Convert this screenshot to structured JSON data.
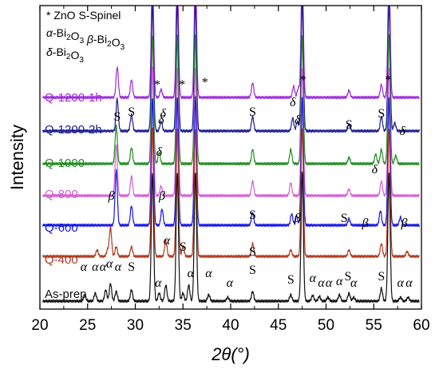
{
  "chart_data": {
    "type": "line",
    "xlabel": "2θ(°)",
    "ylabel": "Intensity",
    "xlim": [
      20,
      60
    ],
    "xticks": [
      "20",
      "25",
      "30",
      "35",
      "40",
      "45",
      "50",
      "55",
      "60"
    ],
    "grid": false,
    "legend": {
      "lines": [
        [
          {
            "t": "* ZnO",
            "it": false
          },
          {
            "t": "      S-Spinel",
            "it": false
          }
        ],
        [
          {
            "t": "α",
            "it": true
          },
          {
            "t": "-Bi",
            "it": false
          },
          {
            "t": "2",
            "sub": true
          },
          {
            "t": "O",
            "it": false
          },
          {
            "t": "3",
            "sub": true
          },
          {
            "t": " β",
            "it": true
          },
          {
            "t": "-Bi",
            "it": false
          },
          {
            "t": "2",
            "sub": true
          },
          {
            "t": "O",
            "it": false
          },
          {
            "t": "3",
            "sub": true
          }
        ],
        [
          {
            "t": "δ",
            "it": true
          },
          {
            "t": "-Bi",
            "it": false
          },
          {
            "t": "2",
            "sub": true
          },
          {
            "t": "O",
            "it": false
          },
          {
            "t": "3",
            "sub": true
          }
        ]
      ]
    },
    "znO_peaks": [
      31.8,
      34.4,
      36.3,
      47.5,
      56.6
    ],
    "series": [
      {
        "name": "Q-1200-1h",
        "color": "#9d2bd8",
        "offset": 6,
        "peaks": [
          [
            28.1,
            0.95
          ],
          [
            29.6,
            0.55
          ],
          [
            31.8,
            4
          ],
          [
            32.7,
            0.25
          ],
          [
            34.4,
            4
          ],
          [
            36.3,
            4
          ],
          [
            42.3,
            0.45
          ],
          [
            46.6,
            0.35
          ],
          [
            47.1,
            0.3
          ],
          [
            47.5,
            4
          ],
          [
            52.4,
            0.22
          ],
          [
            55.8,
            0.4
          ],
          [
            56.6,
            4
          ]
        ]
      },
      {
        "name": "Q-1200-2h",
        "color": "#1d1d8f",
        "offset": 5,
        "peaks": [
          [
            28.1,
            1.0
          ],
          [
            29.6,
            0.5
          ],
          [
            31.8,
            4
          ],
          [
            32.7,
            0.3
          ],
          [
            34.4,
            4
          ],
          [
            36.3,
            4
          ],
          [
            42.3,
            0.45
          ],
          [
            46.5,
            0.4
          ],
          [
            47.0,
            0.3
          ],
          [
            47.5,
            4
          ],
          [
            52.4,
            0.2
          ],
          [
            55.8,
            0.45
          ],
          [
            56.6,
            4
          ],
          [
            57.2,
            0.25
          ]
        ]
      },
      {
        "name": "Q-1000",
        "color": "#228b22",
        "offset": 4,
        "peaks": [
          [
            28.0,
            1.2
          ],
          [
            29.6,
            0.5
          ],
          [
            31.8,
            4
          ],
          [
            32.5,
            0.35
          ],
          [
            34.4,
            4
          ],
          [
            36.3,
            4
          ],
          [
            42.3,
            0.45
          ],
          [
            46.3,
            0.45
          ],
          [
            47.5,
            4
          ],
          [
            52.4,
            0.2
          ],
          [
            55.2,
            0.3
          ],
          [
            55.8,
            0.45
          ],
          [
            56.6,
            4
          ],
          [
            57.3,
            0.25
          ]
        ]
      },
      {
        "name": "Q-800",
        "color": "#d35fd3",
        "offset": 3,
        "peaks": [
          [
            28.0,
            1.6
          ],
          [
            29.6,
            0.6
          ],
          [
            31.8,
            4
          ],
          [
            32.7,
            0.3
          ],
          [
            34.4,
            4
          ],
          [
            36.3,
            4
          ],
          [
            42.3,
            0.45
          ],
          [
            46.3,
            0.4
          ],
          [
            47.5,
            4
          ],
          [
            52.4,
            0.2
          ],
          [
            55.8,
            0.45
          ],
          [
            56.6,
            4
          ]
        ]
      },
      {
        "name": "Q-600",
        "color": "#1616e6",
        "offset": 2,
        "peaks": [
          [
            28.0,
            1.7
          ],
          [
            29.6,
            0.6
          ],
          [
            31.8,
            4
          ],
          [
            32.8,
            0.5
          ],
          [
            34.4,
            4
          ],
          [
            36.3,
            4
          ],
          [
            42.3,
            0.4
          ],
          [
            46.4,
            0.35
          ],
          [
            46.9,
            0.3
          ],
          [
            47.5,
            4
          ],
          [
            52.4,
            0.2
          ],
          [
            55.7,
            0.45
          ],
          [
            56.6,
            4
          ],
          [
            57.8,
            0.25
          ]
        ]
      },
      {
        "name": "Q-400",
        "color": "#b03a1f",
        "offset": 1,
        "peaks": [
          [
            26.0,
            0.2
          ],
          [
            27.1,
            0.2
          ],
          [
            27.4,
            0.9
          ],
          [
            28.0,
            0.3
          ],
          [
            29.6,
            0.3
          ],
          [
            31.8,
            4
          ],
          [
            33.2,
            0.5
          ],
          [
            34.4,
            4
          ],
          [
            35.0,
            0.3
          ],
          [
            36.3,
            4
          ],
          [
            42.3,
            0.4
          ],
          [
            46.3,
            0.2
          ],
          [
            47.5,
            4
          ],
          [
            52.4,
            0.2
          ],
          [
            55.8,
            0.4
          ],
          [
            56.6,
            4
          ],
          [
            58.5,
            0.15
          ]
        ]
      },
      {
        "name": "As-prep",
        "color": "#111111",
        "offset": 0,
        "peaks": [
          [
            24.7,
            0.2
          ],
          [
            25.8,
            0.25
          ],
          [
            26.9,
            0.35
          ],
          [
            27.4,
            0.55
          ],
          [
            28.0,
            0.3
          ],
          [
            29.6,
            0.35
          ],
          [
            31.8,
            4
          ],
          [
            32.5,
            0.25
          ],
          [
            33.2,
            0.5
          ],
          [
            34.4,
            4
          ],
          [
            35.0,
            0.25
          ],
          [
            35.6,
            0.5
          ],
          [
            36.3,
            4
          ],
          [
            37.7,
            0.2
          ],
          [
            39.7,
            0.12
          ],
          [
            42.3,
            0.3
          ],
          [
            46.3,
            0.2
          ],
          [
            47.5,
            4
          ],
          [
            48.6,
            0.18
          ],
          [
            49.3,
            0.15
          ],
          [
            50.2,
            0.12
          ],
          [
            51.4,
            0.2
          ],
          [
            52.4,
            0.25
          ],
          [
            52.9,
            0.12
          ],
          [
            55.8,
            0.4
          ],
          [
            56.6,
            4
          ],
          [
            57.8,
            0.12
          ],
          [
            58.6,
            0.12
          ]
        ]
      }
    ],
    "annotations": [
      {
        "text": "*",
        "x": 32.3,
        "row": 6,
        "dy": 0,
        "italic": false
      },
      {
        "text": "*",
        "x": 34.9,
        "row": 6,
        "dy": 0,
        "italic": false
      },
      {
        "text": "*",
        "x": 37.3,
        "row": 6,
        "dy": -3,
        "italic": false
      },
      {
        "text": "*",
        "x": 47.6,
        "row": 6,
        "dy": -6,
        "italic": false
      },
      {
        "text": "*",
        "x": 56.5,
        "row": 6,
        "dy": -6,
        "italic": false
      },
      {
        "text": "S",
        "x": 29.6,
        "row": 6,
        "dy": 34,
        "italic": false
      },
      {
        "text": "δ",
        "x": 32.9,
        "row": 6,
        "dy": 36,
        "italic": true
      },
      {
        "text": "S",
        "x": 42.3,
        "row": 6,
        "dy": 34,
        "italic": false
      },
      {
        "text": "δ",
        "x": 46.5,
        "row": 6,
        "dy": 22,
        "italic": true
      },
      {
        "text": "S",
        "x": 52.4,
        "row": 6,
        "dy": 50,
        "italic": false
      },
      {
        "text": "S",
        "x": 55.8,
        "row": 6,
        "dy": 36,
        "italic": false
      },
      {
        "text": "S",
        "x": 28.1,
        "row": 5,
        "dy": 0,
        "italic": false
      },
      {
        "text": "δ",
        "x": 32.7,
        "row": 5,
        "dy": 4,
        "italic": true
      },
      {
        "text": "δ",
        "x": 47.0,
        "row": 5,
        "dy": 4,
        "italic": true
      },
      {
        "text": "δ",
        "x": 58.0,
        "row": 5,
        "dy": 18,
        "italic": true
      },
      {
        "text": "δ",
        "x": 32.5,
        "row": 4,
        "dy": 2,
        "italic": true
      },
      {
        "text": "δ",
        "x": 55.1,
        "row": 4,
        "dy": 24,
        "italic": true
      },
      {
        "text": "β",
        "x": 27.5,
        "row": 3,
        "dy": 18,
        "italic": true
      },
      {
        "text": "β",
        "x": 32.8,
        "row": 3,
        "dy": 18,
        "italic": true
      },
      {
        "text": "S",
        "x": 42.3,
        "row": 2,
        "dy": 0,
        "italic": false
      },
      {
        "text": "β",
        "x": 47.0,
        "row": 2,
        "dy": 4,
        "italic": true
      },
      {
        "text": "S",
        "x": 51.9,
        "row": 2,
        "dy": 4,
        "italic": false
      },
      {
        "text": "β",
        "x": 54.1,
        "row": 2,
        "dy": 10,
        "italic": true
      },
      {
        "text": "β",
        "x": 58.2,
        "row": 2,
        "dy": 10,
        "italic": true
      },
      {
        "text": "α",
        "x": 33.3,
        "row": 1,
        "dy": -8,
        "italic": true
      },
      {
        "text": "S",
        "x": 35.0,
        "row": 1,
        "dy": 0,
        "italic": false
      },
      {
        "text": "S",
        "x": 42.3,
        "row": 1,
        "dy": 6,
        "italic": false
      },
      {
        "text": "α",
        "x": 24.6,
        "row": 0,
        "dy": -18,
        "italic": true
      },
      {
        "text": "α",
        "x": 25.8,
        "row": 0,
        "dy": -18,
        "italic": true
      },
      {
        "text": "α",
        "x": 26.6,
        "row": 0,
        "dy": -18,
        "italic": true
      },
      {
        "text": "α",
        "x": 27.3,
        "row": 0,
        "dy": -22,
        "italic": true
      },
      {
        "text": "α",
        "x": 28.2,
        "row": 0,
        "dy": -18,
        "italic": true
      },
      {
        "text": "S",
        "x": 29.6,
        "row": 0,
        "dy": -18,
        "italic": false
      },
      {
        "text": "α",
        "x": 32.4,
        "row": 0,
        "dy": 2,
        "italic": true
      },
      {
        "text": "α",
        "x": 35.8,
        "row": 0,
        "dy": -10,
        "italic": true
      },
      {
        "text": "α",
        "x": 37.7,
        "row": 0,
        "dy": -10,
        "italic": true
      },
      {
        "text": "α",
        "x": 39.9,
        "row": 0,
        "dy": 2,
        "italic": true
      },
      {
        "text": "S",
        "x": 42.3,
        "row": 0,
        "dy": -14,
        "italic": false
      },
      {
        "text": "S",
        "x": 46.3,
        "row": 0,
        "dy": -2,
        "italic": false
      },
      {
        "text": "α",
        "x": 48.6,
        "row": 0,
        "dy": -4,
        "italic": true
      },
      {
        "text": "α",
        "x": 49.5,
        "row": 0,
        "dy": 2,
        "italic": true
      },
      {
        "text": "α",
        "x": 50.3,
        "row": 0,
        "dy": 2,
        "italic": true
      },
      {
        "text": "α",
        "x": 51.4,
        "row": 0,
        "dy": 0,
        "italic": true
      },
      {
        "text": "S",
        "x": 52.3,
        "row": 0,
        "dy": -6,
        "italic": false
      },
      {
        "text": "α",
        "x": 52.9,
        "row": 0,
        "dy": 2,
        "italic": true
      },
      {
        "text": "S",
        "x": 55.8,
        "row": 0,
        "dy": -6,
        "italic": false
      },
      {
        "text": "α",
        "x": 57.8,
        "row": 0,
        "dy": 2,
        "italic": true
      },
      {
        "text": "α",
        "x": 58.7,
        "row": 0,
        "dy": 2,
        "italic": true
      }
    ]
  }
}
